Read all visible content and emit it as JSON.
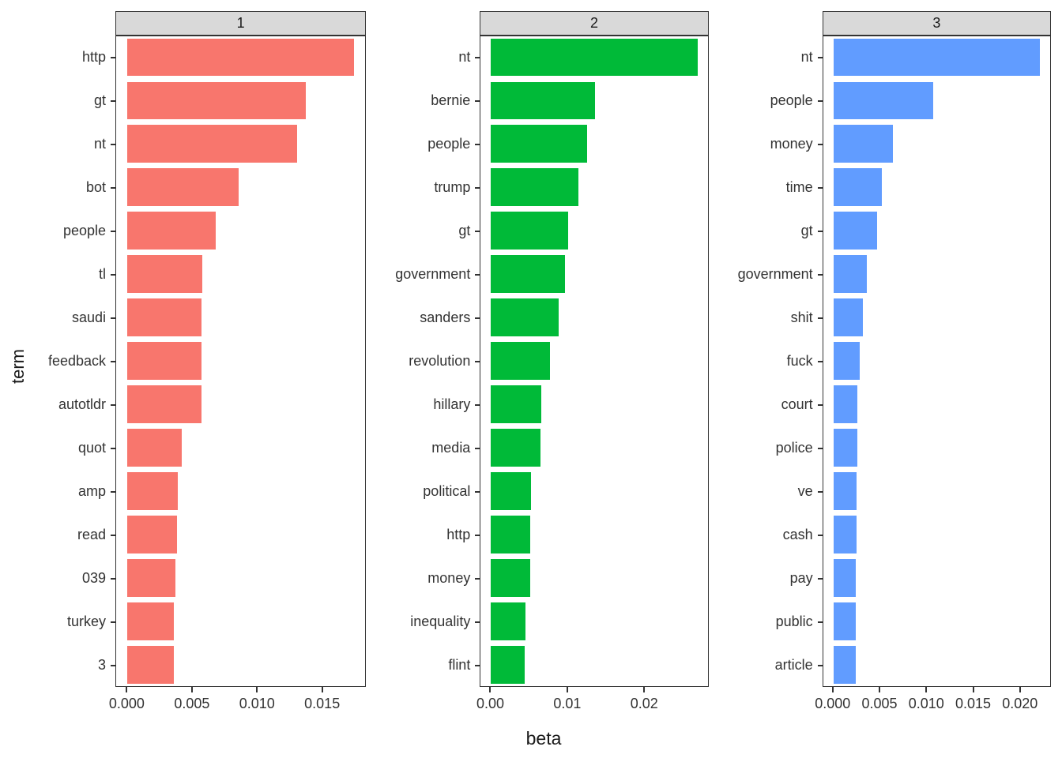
{
  "axes": {
    "xlabel": "beta",
    "ylabel": "term"
  },
  "style": {
    "strip_background": "#D9D9D9",
    "panel_border": "#333333",
    "axis_text_color": "#333333"
  },
  "chart_data": [
    {
      "type": "bar",
      "orientation": "horizontal",
      "facet_label": "1",
      "color": "#F8766D",
      "categories": [
        "http",
        "gt",
        "nt",
        "bot",
        "people",
        "tl",
        "saudi",
        "feedback",
        "autotldr",
        "quot",
        "amp",
        "read",
        "039",
        "turkey",
        "3"
      ],
      "values": [
        0.0175,
        0.0138,
        0.0131,
        0.0086,
        0.0068,
        0.0058,
        0.0057,
        0.0057,
        0.0057,
        0.0042,
        0.0039,
        0.0038,
        0.0037,
        0.0036,
        0.0036
      ],
      "xticks": [
        0,
        0.005,
        0.01,
        0.015
      ],
      "xtick_labels": [
        "0.000",
        "0.005",
        "0.010",
        "0.015"
      ]
    },
    {
      "type": "bar",
      "orientation": "horizontal",
      "facet_label": "2",
      "color": "#00BA38",
      "categories": [
        "nt",
        "bernie",
        "people",
        "trump",
        "gt",
        "government",
        "sanders",
        "revolution",
        "hillary",
        "media",
        "political",
        "http",
        "money",
        "inequality",
        "flint"
      ],
      "values": [
        0.027,
        0.0136,
        0.0126,
        0.0114,
        0.0101,
        0.0097,
        0.0088,
        0.0077,
        0.0066,
        0.0065,
        0.0052,
        0.0051,
        0.0051,
        0.0045,
        0.0044
      ],
      "xticks": [
        0,
        0.01,
        0.02
      ],
      "xtick_labels": [
        "0.00",
        "0.01",
        "0.02"
      ]
    },
    {
      "type": "bar",
      "orientation": "horizontal",
      "facet_label": "3",
      "color": "#619CFF",
      "categories": [
        "nt",
        "people",
        "money",
        "time",
        "gt",
        "government",
        "shit",
        "fuck",
        "court",
        "police",
        "ve",
        "cash",
        "pay",
        "public",
        "article"
      ],
      "values": [
        0.0222,
        0.0107,
        0.0064,
        0.0052,
        0.0047,
        0.0036,
        0.0032,
        0.0028,
        0.0026,
        0.0026,
        0.0025,
        0.0025,
        0.0024,
        0.0024,
        0.0024
      ],
      "xticks": [
        0,
        0.005,
        0.01,
        0.015,
        0.02
      ],
      "xtick_labels": [
        "0.000",
        "0.005",
        "0.010",
        "0.015",
        "0.020"
      ]
    }
  ]
}
